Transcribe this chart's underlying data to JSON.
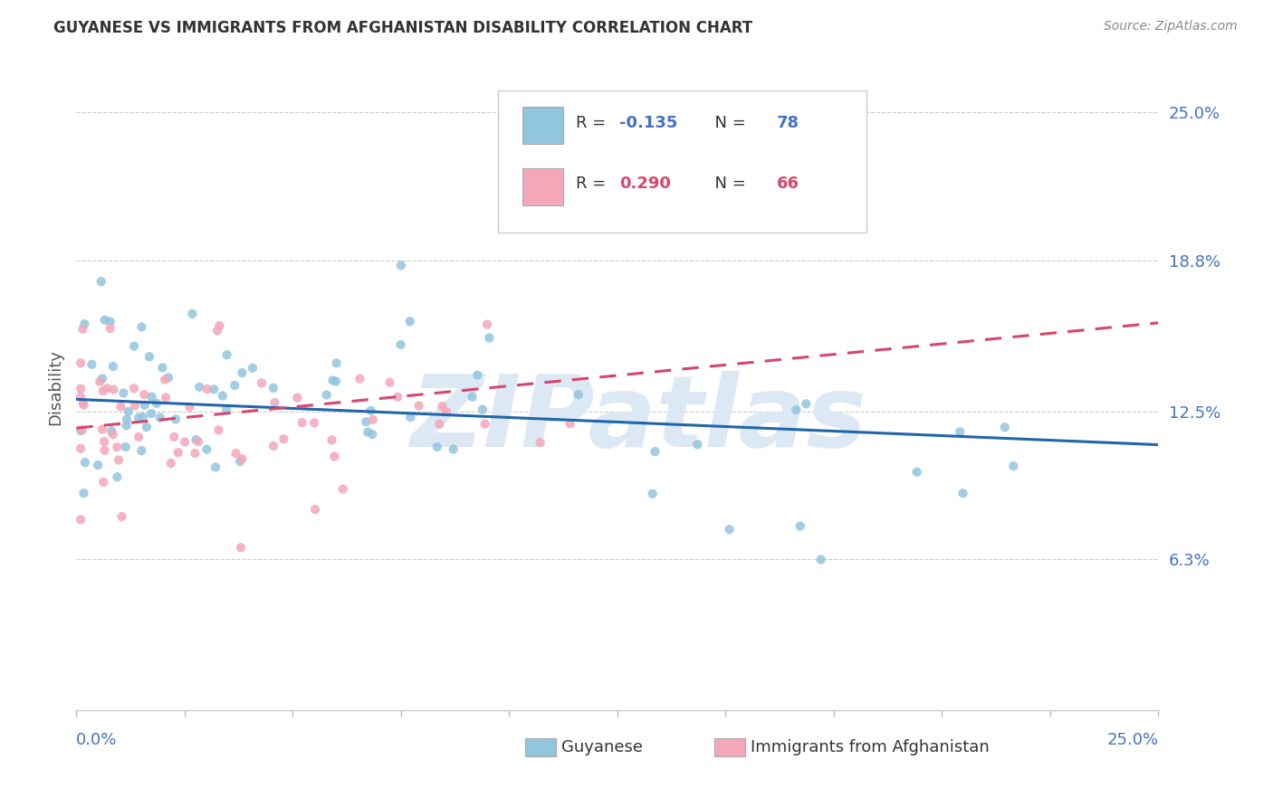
{
  "title": "GUYANESE VS IMMIGRANTS FROM AFGHANISTAN DISABILITY CORRELATION CHART",
  "source": "Source: ZipAtlas.com",
  "ylabel": "Disability",
  "y_ticks": [
    0.063,
    0.125,
    0.188,
    0.25
  ],
  "y_tick_labels": [
    "6.3%",
    "12.5%",
    "18.8%",
    "25.0%"
  ],
  "x_lim": [
    0.0,
    0.25
  ],
  "y_lim": [
    0.0,
    0.27
  ],
  "legend1_R": "-0.135",
  "legend1_N": "78",
  "legend2_R": "0.290",
  "legend2_N": "66",
  "color_blue": "#92c5de",
  "color_pink": "#f4a7b9",
  "trendline_blue": "#2166ac",
  "trendline_pink": "#d6476b",
  "watermark": "ZIPatlas",
  "watermark_color": "#dde8f5",
  "blue_trend_x": [
    0.0,
    0.25
  ],
  "blue_trend_y": [
    0.13,
    0.111
  ],
  "pink_trend_x": [
    0.0,
    0.25
  ],
  "pink_trend_y": [
    0.118,
    0.162
  ]
}
